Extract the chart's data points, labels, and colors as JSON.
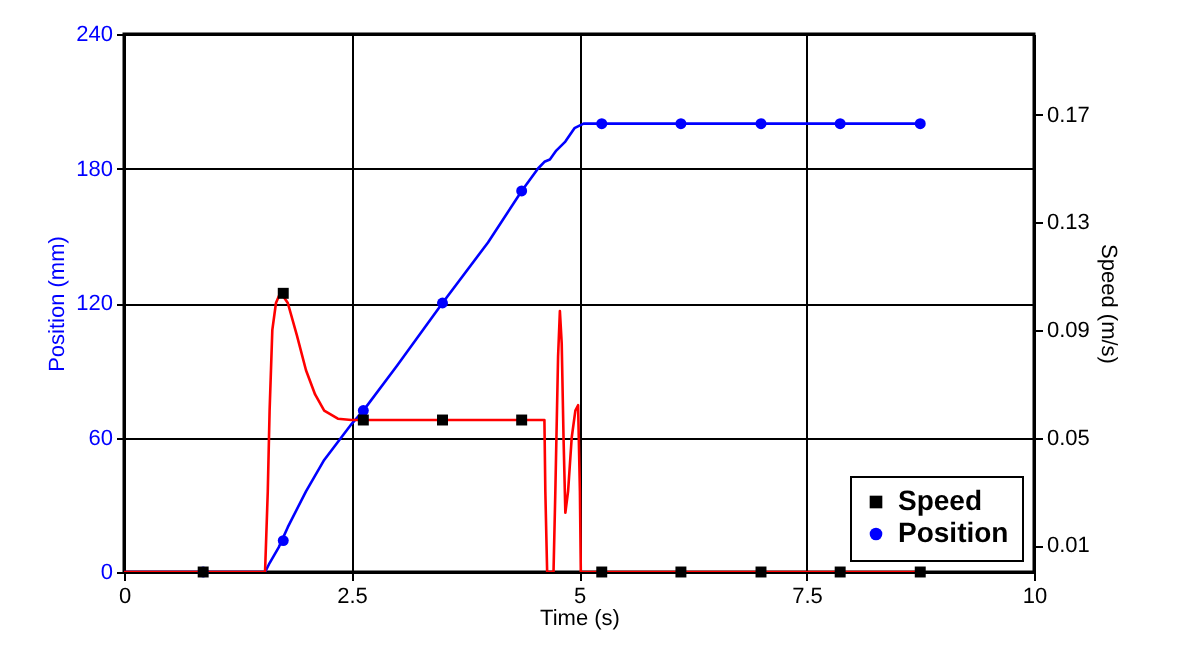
{
  "chart_data": {
    "type": "line",
    "xlabel": "Time (s)",
    "ylabel": "Position (mm)",
    "y2label": "Speed (m/s)",
    "xlim": [
      0,
      10
    ],
    "xticks": [
      0,
      2.5,
      5,
      7.5,
      10
    ],
    "ylim": [
      0,
      240
    ],
    "yticks": [
      0,
      60,
      120,
      180,
      240
    ],
    "y2lim": [
      0,
      0.2
    ],
    "y2ticks": [
      0.01,
      0.05,
      0.09,
      0.13,
      0.17
    ],
    "grid": true,
    "legend": "bottom right",
    "series": [
      {
        "axis": "y2",
        "color": "#ff0000",
        "x": [
          0,
          1.55,
          1.58,
          1.6,
          1.63,
          1.67,
          1.72,
          1.8,
          1.9,
          2.0,
          2.1,
          2.2,
          2.35,
          2.5,
          4.62,
          4.63,
          4.65,
          4.72,
          4.74,
          4.77,
          4.79,
          4.81,
          4.83,
          4.85,
          4.88,
          4.92,
          4.96,
          4.99,
          5.01,
          5.02,
          8.75
        ],
        "values": [
          0,
          0,
          0.03,
          0.06,
          0.09,
          0.1,
          0.104,
          0.1,
          0.088,
          0.075,
          0.066,
          0.06,
          0.057,
          0.0565,
          0.0565,
          0.03,
          0,
          0,
          0.03,
          0.08,
          0.097,
          0.085,
          0.05,
          0.022,
          0.03,
          0.05,
          0.06,
          0.062,
          0.03,
          0,
          0
        ]
      },
      {
        "type": "scatter",
        "axis": "y2",
        "name": "Speed",
        "color": "#000000",
        "marker": "square",
        "x": [
          0.87,
          1.75,
          2.63,
          3.5,
          4.37,
          5.25,
          6.12,
          7.0,
          7.87,
          8.75
        ],
        "values": [
          0,
          0.1036,
          0.0565,
          0.0565,
          0.0565,
          0,
          0,
          0,
          0,
          0
        ]
      },
      {
        "color": "#0000ff",
        "x": [
          0,
          1.55,
          1.6,
          1.7,
          1.8,
          2.0,
          2.2,
          2.5,
          2.63,
          3.0,
          3.5,
          4.0,
          4.37,
          4.55,
          4.62,
          4.68,
          4.75,
          4.85,
          4.95,
          5.05,
          8.75
        ],
        "values": [
          0,
          0,
          4,
          11,
          20,
          36,
          50,
          66,
          72,
          92,
          120,
          147,
          170,
          180,
          183,
          184,
          188,
          192,
          198,
          200,
          200
        ]
      },
      {
        "type": "scatter",
        "name": "Position",
        "color": "#0000ff",
        "marker": "circle",
        "x": [
          0.87,
          1.75,
          2.63,
          3.5,
          4.37,
          5.25,
          6.12,
          7.0,
          7.87,
          8.75
        ],
        "values": [
          0,
          14,
          72,
          120,
          170,
          200,
          200,
          200,
          200,
          200
        ]
      }
    ]
  }
}
